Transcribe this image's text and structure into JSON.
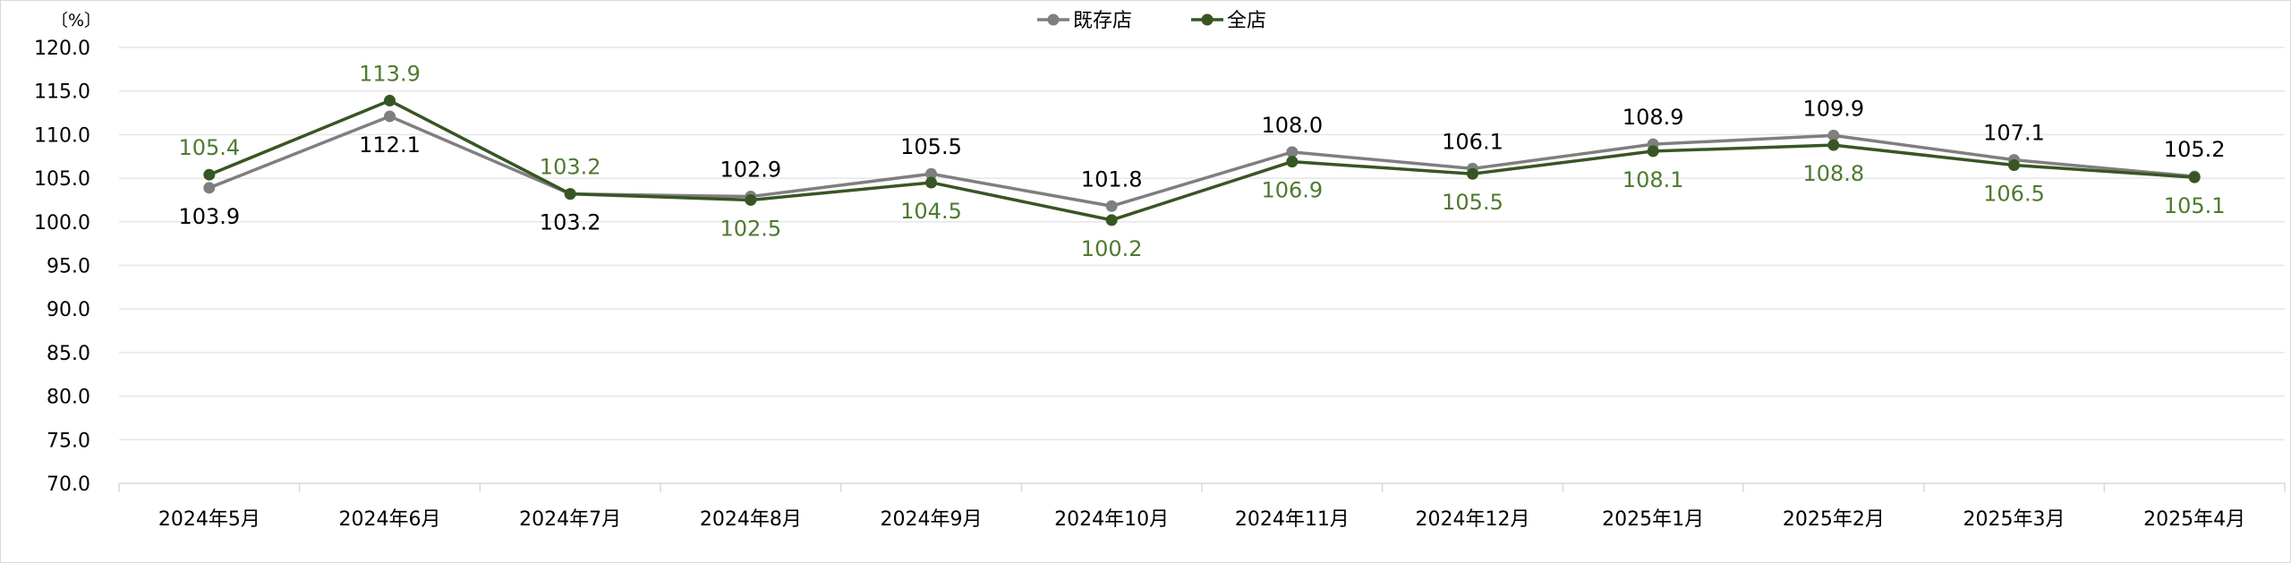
{
  "chart_data": {
    "type": "line",
    "title": "",
    "xlabel": "",
    "ylabel": "",
    "unit_label": "〔%〕",
    "ylim": [
      70,
      120
    ],
    "ytick_step": 5,
    "ytick_labels": [
      "70.0",
      "75.0",
      "80.0",
      "85.0",
      "90.0",
      "95.0",
      "100.0",
      "105.0",
      "110.0",
      "115.0",
      "120.0"
    ],
    "categories": [
      "2024年5月",
      "2024年6月",
      "2024年7月",
      "2024年8月",
      "2024年9月",
      "2024年10月",
      "2024年11月",
      "2024年12月",
      "2025年1月",
      "2025年2月",
      "2025年3月",
      "2025年4月"
    ],
    "grid": true,
    "legend_position": "top-center",
    "series": [
      {
        "name": "既存店",
        "color": "#7f7f7f",
        "label_color": "#000000",
        "values": [
          103.9,
          112.1,
          103.2,
          102.9,
          105.5,
          101.8,
          108.0,
          106.1,
          108.9,
          109.9,
          107.1,
          105.2
        ],
        "labels": [
          "103.9",
          "112.1",
          "103.2",
          "102.9",
          "105.5",
          "101.8",
          "108.0",
          "106.1",
          "108.9",
          "109.9",
          "107.1",
          "105.2"
        ]
      },
      {
        "name": "全店",
        "color": "#375623",
        "label_color": "#4e7a2f",
        "values": [
          105.4,
          113.9,
          103.2,
          102.5,
          104.5,
          100.2,
          106.9,
          105.5,
          108.1,
          108.8,
          106.5,
          105.1
        ],
        "labels": [
          "105.4",
          "113.9",
          "103.2",
          "102.5",
          "104.5",
          "100.2",
          "106.9",
          "105.5",
          "108.1",
          "108.8",
          "106.5",
          "105.1"
        ]
      }
    ]
  }
}
